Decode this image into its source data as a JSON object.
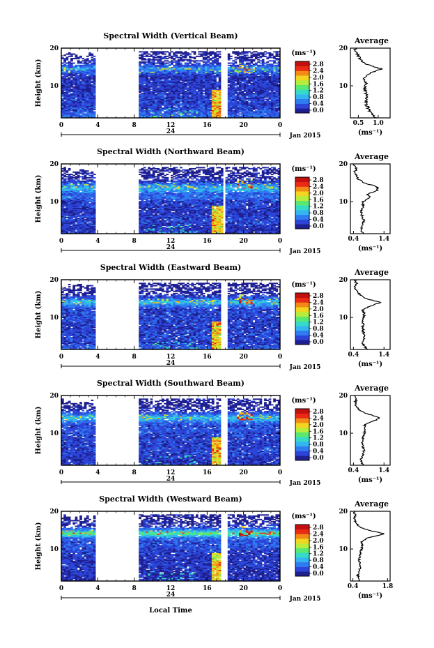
{
  "figure": {
    "xlabel": "Local Time",
    "date_label": "Jan 2015",
    "day_label": "24",
    "ylabel": "Height (km)",
    "colorbar_unit": "(ms⁻¹)",
    "colorbar_ticks": [
      "0.0",
      "0.4",
      "0.8",
      "1.2",
      "1.6",
      "2.0",
      "2.4",
      "2.8"
    ],
    "colormap": [
      "#1f1f8f",
      "#2c45d8",
      "#2f7bf0",
      "#33b5f0",
      "#36dbc8",
      "#5be870",
      "#b8ec3c",
      "#f2d51f",
      "#f38a18",
      "#ea2a14",
      "#c21010"
    ],
    "avg_title": "Average"
  },
  "chart_data": [
    {
      "type": "heatmap",
      "title": "Spectral Width (Vertical Beam)",
      "xlabel": "Local Time",
      "ylabel": "Height (km)",
      "xticks": [
        "0",
        "4",
        "8",
        "12",
        "16",
        "20",
        "0"
      ],
      "x_range": [
        0,
        24
      ],
      "ylim": [
        1.5,
        20
      ],
      "yticks": [
        "10",
        "20"
      ],
      "colorbar_range": [
        0.0,
        2.8
      ],
      "data_gaps_hours": [
        [
          3.8,
          8.5
        ],
        [
          17.6,
          18.2
        ]
      ],
      "avg_profile": {
        "title": "Average",
        "xlabel": "(ms⁻¹)",
        "xticks": [
          "0.5",
          "1.0"
        ],
        "xlim": [
          0.3,
          1.3
        ],
        "ylim": [
          1.5,
          20
        ],
        "yticks": [
          "10",
          "20"
        ],
        "height_km": [
          1.5,
          3,
          5,
          7,
          9,
          11,
          12,
          13,
          14,
          14.5,
          15,
          16,
          17,
          18,
          19,
          20
        ],
        "width_ms": [
          0.95,
          0.8,
          0.7,
          0.72,
          0.65,
          0.7,
          0.62,
          0.72,
          0.95,
          1.1,
          0.9,
          0.65,
          0.55,
          0.5,
          0.45,
          0.42
        ]
      }
    },
    {
      "type": "heatmap",
      "title": "Spectral Width (Northward Beam)",
      "xlabel": "Local Time",
      "ylabel": "Height (km)",
      "xticks": [
        "0",
        "4",
        "8",
        "12",
        "16",
        "20",
        "0"
      ],
      "x_range": [
        0,
        24
      ],
      "ylim": [
        1.5,
        20
      ],
      "yticks": [
        "10",
        "20"
      ],
      "colorbar_range": [
        0.0,
        2.8
      ],
      "data_gaps_hours": [
        [
          3.8,
          8.5
        ],
        [
          17.7,
          18.1
        ]
      ],
      "avg_profile": {
        "title": "Average",
        "xlabel": "(ms⁻¹)",
        "xticks": [
          "0.4",
          "1.4"
        ],
        "xlim": [
          0.3,
          1.6
        ],
        "ylim": [
          1.5,
          20
        ],
        "yticks": [
          "10",
          "20"
        ],
        "height_km": [
          1.5,
          3,
          5,
          7,
          9,
          10,
          11,
          12,
          13,
          14,
          15,
          16,
          17,
          18,
          19,
          20
        ],
        "width_ms": [
          0.7,
          0.65,
          0.75,
          0.65,
          0.72,
          0.7,
          0.95,
          0.85,
          1.2,
          1.15,
          0.75,
          0.55,
          0.5,
          0.45,
          0.5,
          0.42
        ]
      }
    },
    {
      "type": "heatmap",
      "title": "Spectral Width (Eastward Beam)",
      "xlabel": "Local Time",
      "ylabel": "Height (km)",
      "xticks": [
        "0",
        "4",
        "8",
        "12",
        "16",
        "20",
        "0"
      ],
      "x_range": [
        0,
        24
      ],
      "ylim": [
        1.5,
        20
      ],
      "yticks": [
        "10",
        "20"
      ],
      "colorbar_range": [
        0.0,
        2.8
      ],
      "data_gaps_hours": [
        [
          3.8,
          8.5
        ],
        [
          17.6,
          18.2
        ]
      ],
      "avg_profile": {
        "title": "Average",
        "xlabel": "(ms⁻¹)",
        "xticks": [
          "0.4",
          "1.4"
        ],
        "xlim": [
          0.3,
          1.6
        ],
        "ylim": [
          1.5,
          20
        ],
        "yticks": [
          "10",
          "20"
        ],
        "height_km": [
          1.5,
          3,
          5,
          7,
          9,
          11,
          12,
          13,
          14,
          15,
          16,
          17,
          18,
          19,
          20
        ],
        "width_ms": [
          0.85,
          0.7,
          0.75,
          0.7,
          0.72,
          0.75,
          0.7,
          0.95,
          1.3,
          0.8,
          0.6,
          0.5,
          0.45,
          0.5,
          0.42
        ]
      }
    },
    {
      "type": "heatmap",
      "title": "Spectral Width (Southward Beam)",
      "xlabel": "Local Time",
      "ylabel": "Height (km)",
      "xticks": [
        "0",
        "4",
        "8",
        "12",
        "16",
        "20",
        "0"
      ],
      "x_range": [
        0,
        24
      ],
      "ylim": [
        1.5,
        20
      ],
      "yticks": [
        "10",
        "20"
      ],
      "colorbar_range": [
        0.0,
        2.8
      ],
      "data_gaps_hours": [
        [
          3.8,
          8.5
        ],
        [
          17.6,
          18.2
        ]
      ],
      "avg_profile": {
        "title": "Average",
        "xlabel": "(ms⁻¹)",
        "xticks": [
          "0.4",
          "1.4"
        ],
        "xlim": [
          0.3,
          1.6
        ],
        "ylim": [
          1.5,
          20
        ],
        "yticks": [
          "10",
          "20"
        ],
        "height_km": [
          1.5,
          3,
          5,
          7,
          9,
          11,
          12,
          13,
          14,
          15,
          16,
          17,
          18,
          19,
          20
        ],
        "width_ms": [
          0.7,
          0.65,
          0.75,
          0.7,
          0.72,
          0.8,
          0.75,
          0.95,
          1.3,
          0.9,
          0.6,
          0.5,
          0.45,
          0.5,
          0.42
        ]
      }
    },
    {
      "type": "heatmap",
      "title": "Spectral Width (Westward Beam)",
      "xlabel": "Local Time",
      "ylabel": "Height (km)",
      "xticks": [
        "0",
        "4",
        "8",
        "12",
        "16",
        "20",
        "0"
      ],
      "x_range": [
        0,
        24
      ],
      "ylim": [
        1.5,
        20
      ],
      "yticks": [
        "10",
        "20"
      ],
      "colorbar_range": [
        0.0,
        2.8
      ],
      "data_gaps_hours": [
        [
          3.8,
          8.5
        ],
        [
          17.6,
          18.2
        ]
      ],
      "avg_profile": {
        "title": "Average",
        "xlabel": "(ms⁻¹)",
        "xticks": [
          "0.4",
          "1.8"
        ],
        "xlim": [
          0.3,
          1.9
        ],
        "ylim": [
          1.5,
          20
        ],
        "yticks": [
          "10",
          "20"
        ],
        "height_km": [
          1.5,
          3,
          5,
          7,
          9,
          11,
          12,
          13,
          14,
          15,
          16,
          17,
          18,
          19,
          20
        ],
        "width_ms": [
          0.65,
          0.6,
          0.7,
          0.65,
          0.7,
          0.8,
          0.75,
          1.0,
          1.7,
          1.0,
          0.65,
          0.5,
          0.45,
          0.5,
          0.42
        ]
      }
    }
  ]
}
